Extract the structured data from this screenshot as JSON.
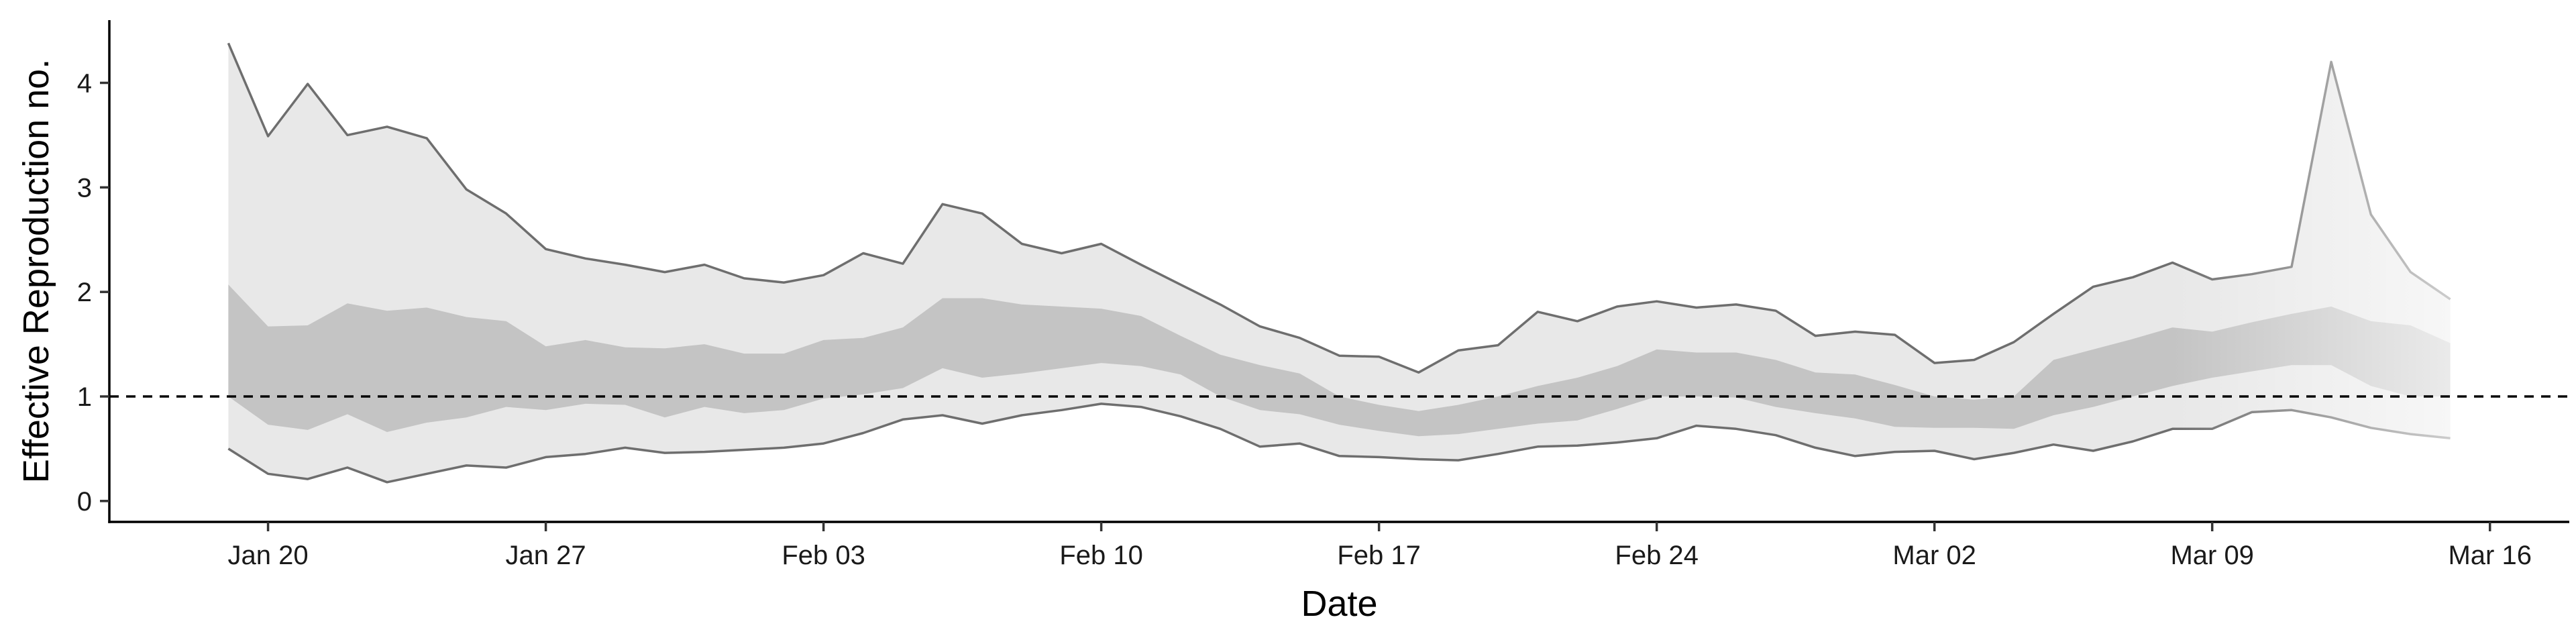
{
  "chart_data": {
    "type": "area",
    "title": "",
    "xlabel": "Date",
    "ylabel": "Effective Reproduction no.",
    "x_tick_labels": [
      "Jan 20",
      "Jan 27",
      "Feb 03",
      "Feb 10",
      "Feb 17",
      "Feb 24",
      "Mar 02",
      "Mar 09",
      "Mar 16"
    ],
    "x_tick_dates": [
      "2020-01-20",
      "2020-01-27",
      "2020-02-03",
      "2020-02-10",
      "2020-02-17",
      "2020-02-24",
      "2020-03-02",
      "2020-03-09",
      "2020-03-16"
    ],
    "xlim": [
      "2020-01-16",
      "2020-03-18"
    ],
    "ylim": [
      -0.2,
      4.6
    ],
    "y_ticks": [
      0,
      1,
      2,
      3,
      4
    ],
    "reference_line": {
      "y": 1,
      "style": "dashed"
    },
    "grid": false,
    "legend": "none",
    "colors": {
      "outer_band": "#e8e8e8",
      "inner_band": "#c4c4c4",
      "band_edge": "#6e6e6e",
      "reference": "#000000"
    },
    "x": [
      "2020-01-19",
      "2020-01-20",
      "2020-01-21",
      "2020-01-22",
      "2020-01-23",
      "2020-01-24",
      "2020-01-25",
      "2020-01-26",
      "2020-01-27",
      "2020-01-28",
      "2020-01-29",
      "2020-01-30",
      "2020-01-31",
      "2020-02-01",
      "2020-02-02",
      "2020-02-03",
      "2020-02-04",
      "2020-02-05",
      "2020-02-06",
      "2020-02-07",
      "2020-02-08",
      "2020-02-09",
      "2020-02-10",
      "2020-02-11",
      "2020-02-12",
      "2020-02-13",
      "2020-02-14",
      "2020-02-15",
      "2020-02-16",
      "2020-02-17",
      "2020-02-18",
      "2020-02-19",
      "2020-02-20",
      "2020-02-21",
      "2020-02-22",
      "2020-02-23",
      "2020-02-24",
      "2020-02-25",
      "2020-02-26",
      "2020-02-27",
      "2020-02-28",
      "2020-02-29",
      "2020-03-01",
      "2020-03-02",
      "2020-03-03",
      "2020-03-04",
      "2020-03-05",
      "2020-03-06",
      "2020-03-07",
      "2020-03-08",
      "2020-03-09",
      "2020-03-10",
      "2020-03-11",
      "2020-03-12",
      "2020-03-13",
      "2020-03-14",
      "2020-03-15"
    ],
    "upper_90": [
      4.38,
      3.49,
      3.99,
      3.5,
      3.58,
      3.47,
      2.98,
      2.75,
      2.41,
      2.32,
      2.26,
      2.19,
      2.26,
      2.13,
      2.09,
      2.16,
      2.37,
      2.27,
      2.84,
      2.75,
      2.46,
      2.37,
      2.46,
      2.26,
      2.07,
      1.88,
      1.67,
      1.56,
      1.39,
      1.38,
      1.23,
      1.44,
      1.49,
      1.81,
      1.72,
      1.86,
      1.91,
      1.85,
      1.88,
      1.82,
      1.58,
      1.62,
      1.59,
      1.32,
      1.35,
      1.52,
      1.79,
      2.05,
      2.14,
      2.28,
      2.12,
      2.17,
      2.24,
      4.2,
      2.74,
      2.19,
      1.93
    ],
    "lower_90": [
      0.5,
      0.26,
      0.21,
      0.32,
      0.18,
      0.26,
      0.34,
      0.32,
      0.42,
      0.45,
      0.51,
      0.46,
      0.47,
      0.49,
      0.51,
      0.55,
      0.65,
      0.78,
      0.82,
      0.74,
      0.82,
      0.87,
      0.93,
      0.9,
      0.81,
      0.69,
      0.52,
      0.55,
      0.43,
      0.42,
      0.4,
      0.39,
      0.45,
      0.52,
      0.53,
      0.56,
      0.6,
      0.72,
      0.69,
      0.63,
      0.51,
      0.43,
      0.47,
      0.48,
      0.4,
      0.46,
      0.54,
      0.48,
      0.57,
      0.69,
      0.69,
      0.85,
      0.87,
      0.8,
      0.7,
      0.64,
      0.6
    ],
    "upper_50": [
      2.07,
      1.67,
      1.68,
      1.89,
      1.82,
      1.85,
      1.76,
      1.72,
      1.48,
      1.54,
      1.47,
      1.46,
      1.5,
      1.41,
      1.41,
      1.54,
      1.56,
      1.66,
      1.94,
      1.94,
      1.88,
      1.86,
      1.84,
      1.77,
      1.58,
      1.4,
      1.3,
      1.22,
      1.0,
      0.92,
      0.86,
      0.92,
      1.0,
      1.1,
      1.18,
      1.29,
      1.45,
      1.42,
      1.42,
      1.35,
      1.23,
      1.21,
      1.11,
      1.0,
      0.97,
      1.0,
      1.35,
      1.45,
      1.55,
      1.66,
      1.62,
      1.71,
      1.79,
      1.86,
      1.72,
      1.68,
      1.51
    ],
    "lower_50": [
      1.0,
      0.73,
      0.68,
      0.83,
      0.66,
      0.75,
      0.8,
      0.9,
      0.87,
      0.93,
      0.92,
      0.8,
      0.9,
      0.84,
      0.87,
      0.98,
      1.02,
      1.08,
      1.27,
      1.18,
      1.22,
      1.27,
      1.32,
      1.29,
      1.21,
      1.0,
      0.87,
      0.83,
      0.73,
      0.67,
      0.62,
      0.64,
      0.69,
      0.74,
      0.77,
      0.88,
      1.0,
      1.0,
      0.99,
      0.9,
      0.84,
      0.79,
      0.71,
      0.7,
      0.7,
      0.69,
      0.82,
      0.9,
      1.0,
      1.1,
      1.18,
      1.24,
      1.3,
      1.3,
      1.1,
      1.0,
      1.0
    ]
  }
}
